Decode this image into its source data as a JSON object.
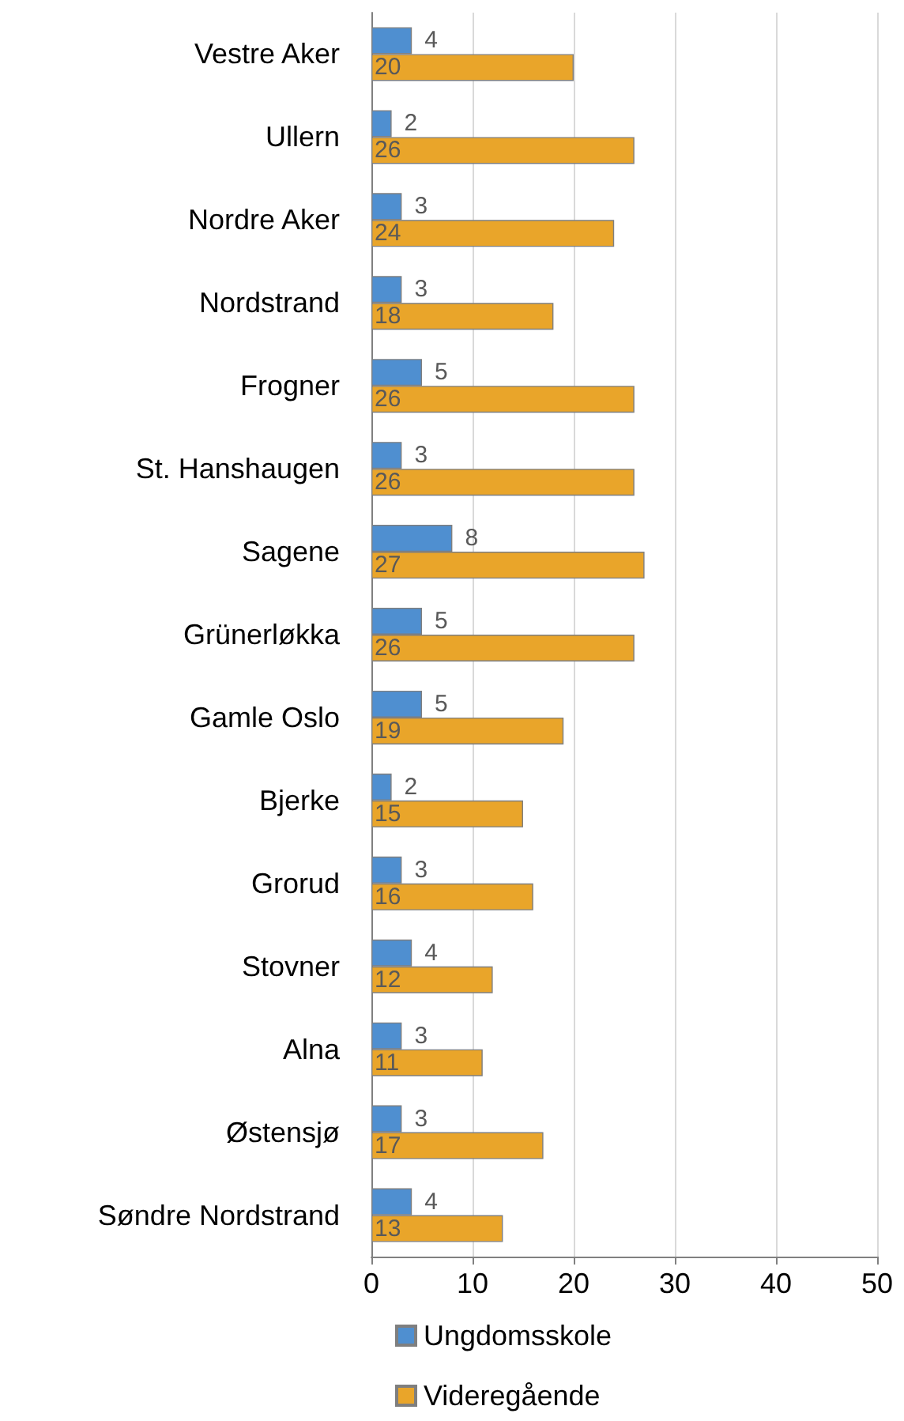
{
  "chart_data": {
    "type": "bar",
    "orientation": "horizontal",
    "categories": [
      "Vestre Aker",
      "Ullern",
      "Nordre Aker",
      "Nordstrand",
      "Frogner",
      "St. Hanshaugen",
      "Sagene",
      "Grünerløkka",
      "Gamle Oslo",
      "Bjerke",
      "Grorud",
      "Stovner",
      "Alna",
      "Østensjø",
      "Søndre Nordstrand"
    ],
    "series": [
      {
        "name": "Ungdomsskole",
        "color": "#4f8fd0",
        "values": [
          4,
          2,
          3,
          3,
          5,
          3,
          8,
          5,
          5,
          2,
          3,
          4,
          3,
          3,
          4
        ]
      },
      {
        "name": "Videregående",
        "color": "#e9a52a",
        "values": [
          20,
          26,
          24,
          18,
          26,
          26,
          27,
          26,
          19,
          15,
          16,
          12,
          11,
          17,
          13
        ]
      }
    ],
    "xlim": [
      0,
      50
    ],
    "xticks": [
      0,
      10,
      20,
      30,
      40,
      50
    ],
    "grid": "x",
    "legend": "bottom",
    "data_labels": true
  }
}
